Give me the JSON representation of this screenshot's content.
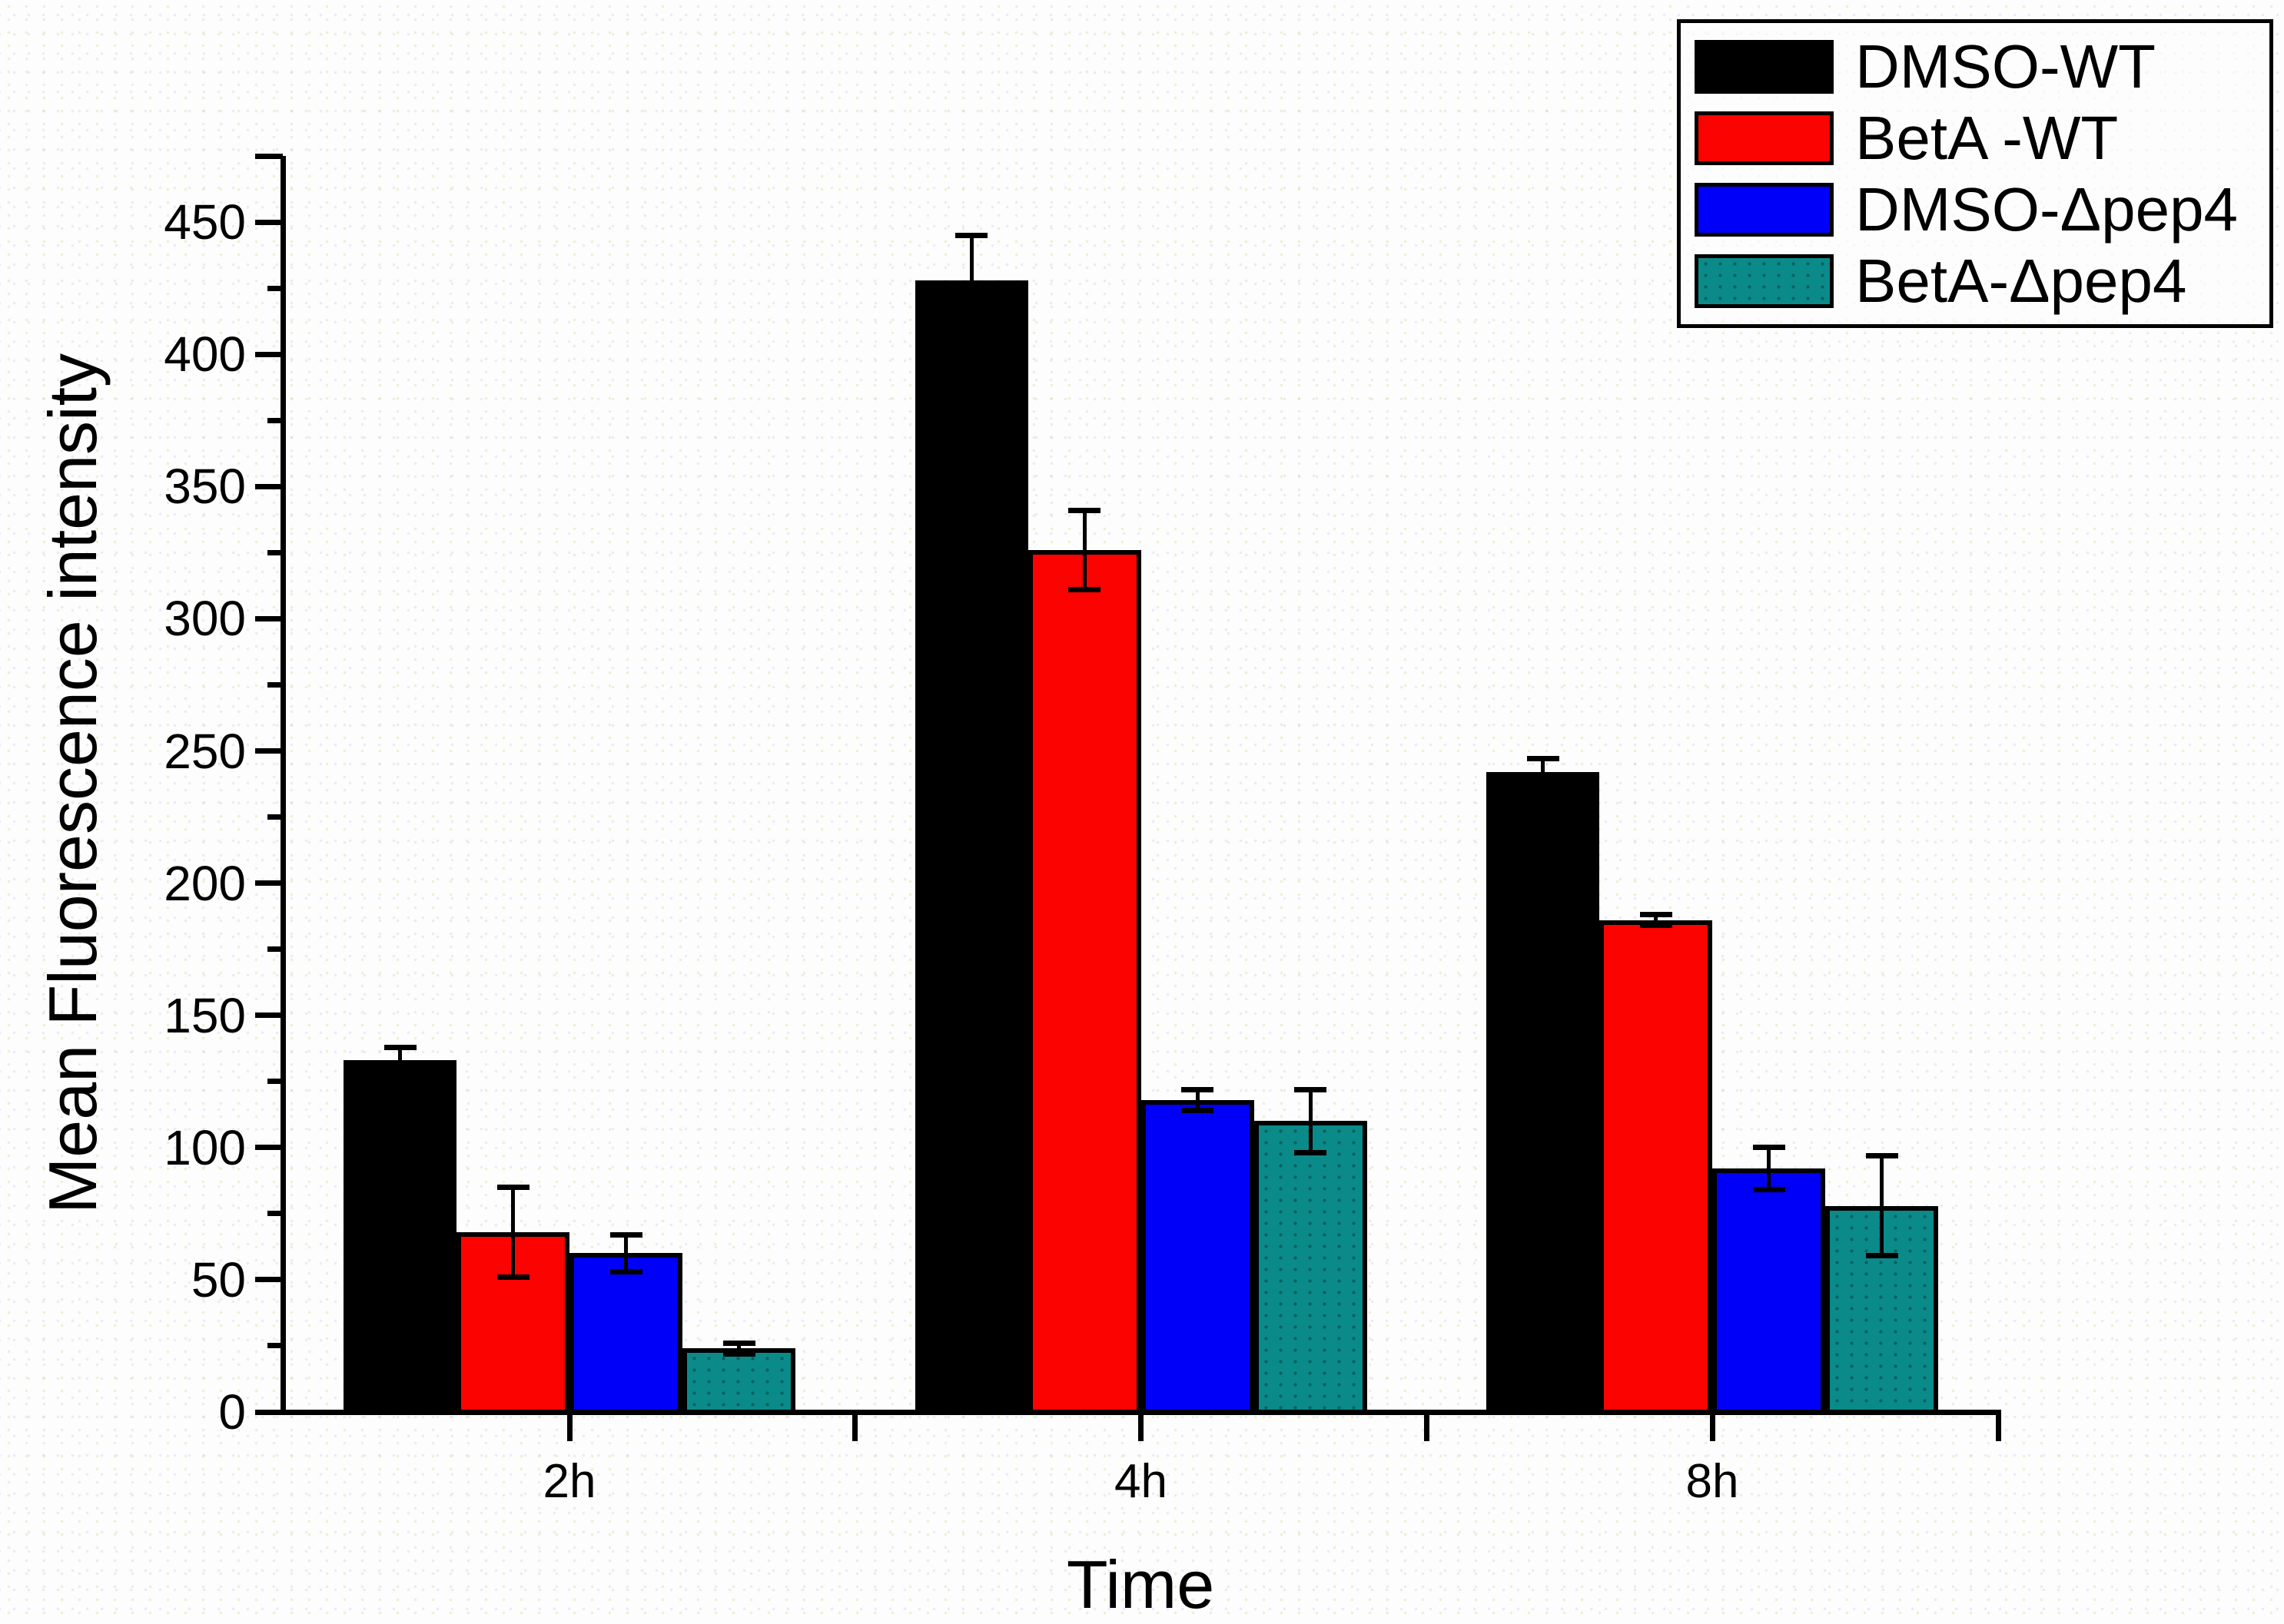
{
  "figure_title": "",
  "y_axis": {
    "label": "Mean Fluorescence intensity",
    "tick_labels": [
      "0",
      "50",
      "100",
      "150",
      "200",
      "250",
      "300",
      "350",
      "400",
      "450"
    ]
  },
  "x_axis": {
    "label": "Time",
    "tick_labels": [
      "2h",
      "4h",
      "8h"
    ]
  },
  "legend": {
    "items": [
      "DMSO-WT",
      "BetA -WT",
      "DMSO-Δpep4",
      "BetA-Δpep4"
    ]
  },
  "colors": {
    "black_series": "#000000",
    "red_series": "#fb0300",
    "blue_series": "#0000f8",
    "teal_series": "#0b8a8a",
    "axis": "#000000",
    "background": "#fdfdfd"
  },
  "chart_data": {
    "type": "bar",
    "title": "",
    "categories": [
      "2h",
      "4h",
      "8h"
    ],
    "series": [
      {
        "name": "DMSO-WT",
        "color": "#000000",
        "values": [
          133,
          428,
          242
        ],
        "errors": [
          5,
          17,
          5
        ]
      },
      {
        "name": "BetA -WT",
        "color": "#fb0300",
        "values": [
          68,
          326,
          186
        ],
        "errors": [
          17,
          15,
          2
        ]
      },
      {
        "name": "DMSO-Δpep4",
        "color": "#0000f8",
        "values": [
          60,
          118,
          92
        ],
        "errors": [
          7,
          4,
          8
        ]
      },
      {
        "name": "BetA-Δpep4",
        "color": "#0b8a8a",
        "values": [
          24,
          110,
          78
        ],
        "errors": [
          2,
          12,
          19
        ]
      }
    ],
    "xlabel": "Time",
    "ylabel": "Mean Fluorescence intensity",
    "ylim": [
      0,
      475
    ],
    "yticks": [
      0,
      50,
      100,
      150,
      200,
      250,
      300,
      350,
      400,
      450
    ],
    "yminor_step": 25,
    "grid": false,
    "legend_position": "top-right",
    "error_bars": true
  }
}
